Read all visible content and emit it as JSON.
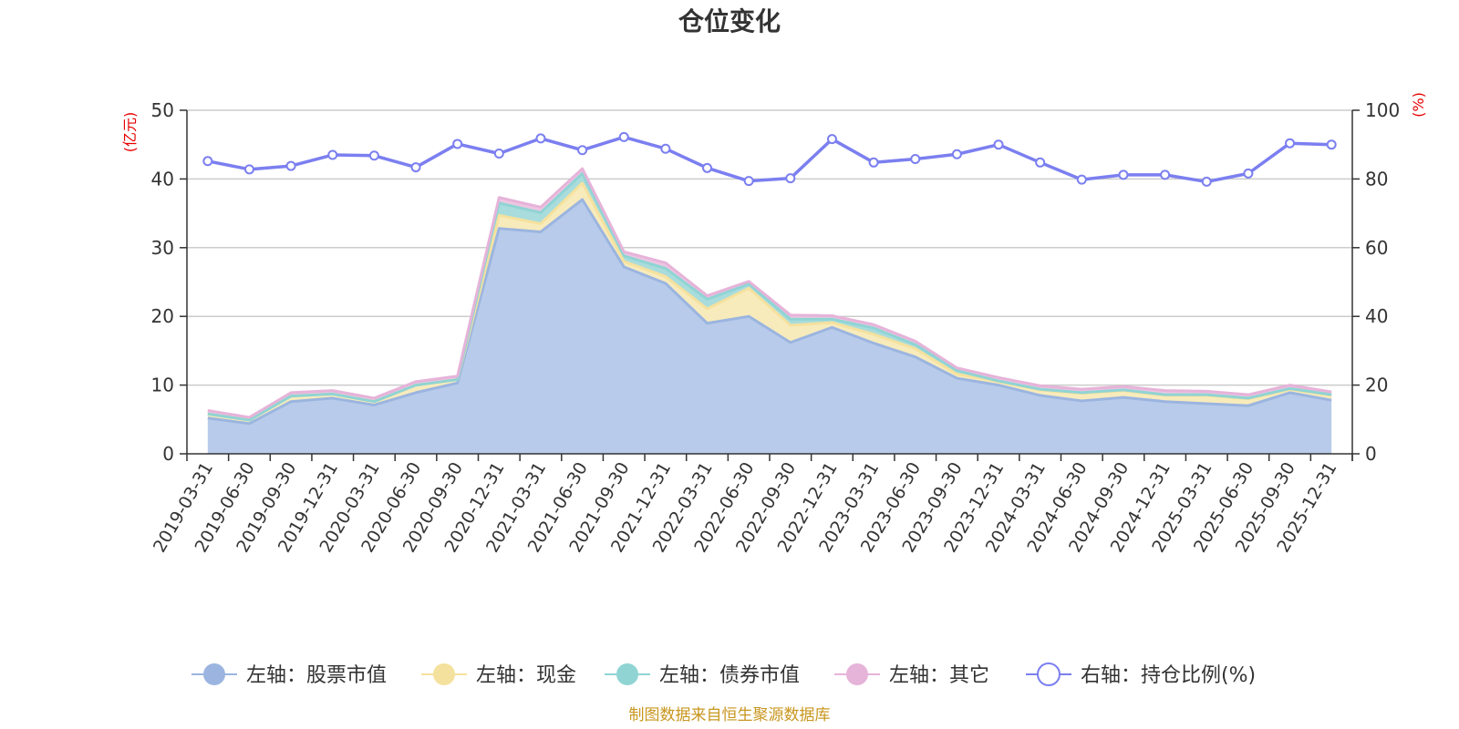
{
  "chart_data": {
    "type": "area",
    "title": "仓位变化",
    "left_unit": "(亿元)",
    "right_unit": "(%)",
    "categories": [
      "2019-03-31",
      "2019-06-30",
      "2019-09-30",
      "2019-12-31",
      "2020-03-31",
      "2020-06-30",
      "2020-09-30",
      "2020-12-31",
      "2021-03-31",
      "2021-06-30",
      "2021-09-30",
      "2021-12-31",
      "2022-03-31",
      "2022-06-30",
      "2022-09-30",
      "2022-12-31",
      "2023-03-31",
      "2023-06-30",
      "2023-09-30",
      "2023-12-31",
      "2024-03-31",
      "2024-06-30",
      "2024-09-30",
      "2024-12-31",
      "2025-03-31",
      "2025-06-30",
      "2025-09-30",
      "2025-12-31"
    ],
    "left_axis": {
      "min": 0,
      "max": 50,
      "ticks": [
        0,
        10,
        20,
        30,
        40,
        50
      ]
    },
    "right_axis": {
      "min": 0,
      "max": 100,
      "ticks": [
        0,
        20,
        40,
        60,
        80,
        100
      ]
    },
    "series": [
      {
        "name": "左轴：股票市值",
        "axis": "left",
        "kind": "stacked-area",
        "color": "#9bb5e0",
        "fill": "#b8cbea",
        "values": [
          5.2,
          4.4,
          7.6,
          8.1,
          7.1,
          8.9,
          10.3,
          32.8,
          32.3,
          37.0,
          27.2,
          24.8,
          19.0,
          20.0,
          16.2,
          18.4,
          16.1,
          14.1,
          11.0,
          10.0,
          8.5,
          7.7,
          8.2,
          7.6,
          7.3,
          7.0,
          8.9,
          7.8
        ]
      },
      {
        "name": "左轴：现金",
        "axis": "left",
        "kind": "stacked-area",
        "color": "#f5e19e",
        "fill": "#f8ebbb",
        "values": [
          0.6,
          0.5,
          0.8,
          0.6,
          0.5,
          1.1,
          0.5,
          1.9,
          1.2,
          2.4,
          0.8,
          1.0,
          2.1,
          4.1,
          2.5,
          0.7,
          1.3,
          1.2,
          0.6,
          0.5,
          0.8,
          1.1,
          1.0,
          0.9,
          1.2,
          1.0,
          0.5,
          0.7
        ]
      },
      {
        "name": "左轴：债券市值",
        "axis": "left",
        "kind": "stacked-area",
        "color": "#90d4d4",
        "fill": "#a9dcdc",
        "values": [
          0.0,
          0.0,
          0.0,
          0.0,
          0.0,
          0.0,
          0.0,
          1.8,
          1.6,
          1.4,
          0.8,
          1.2,
          1.4,
          0.6,
          0.9,
          0.5,
          0.9,
          0.6,
          0.5,
          0.1,
          0.1,
          0.1,
          0.1,
          0.1,
          0.1,
          0.1,
          0.1,
          0.1
        ]
      },
      {
        "name": "左轴：其它",
        "axis": "left",
        "kind": "stacked-area",
        "color": "#e6b3d9",
        "fill": "#eec6e2",
        "values": [
          0.5,
          0.4,
          0.5,
          0.5,
          0.5,
          0.5,
          0.5,
          0.8,
          0.8,
          0.7,
          0.6,
          0.8,
          0.5,
          0.4,
          0.6,
          0.5,
          0.5,
          0.5,
          0.4,
          0.5,
          0.5,
          0.5,
          0.5,
          0.6,
          0.5,
          0.5,
          0.5,
          0.4
        ]
      },
      {
        "name": "右轴：持仓比例(%)",
        "axis": "right",
        "kind": "line",
        "color": "#7b7ff0",
        "fill": "#ffffff",
        "values": [
          85.2,
          82.8,
          83.8,
          87.0,
          86.8,
          83.4,
          90.2,
          87.4,
          91.8,
          88.4,
          92.2,
          88.8,
          83.2,
          79.4,
          80.2,
          91.6,
          84.8,
          85.8,
          87.2,
          90.0,
          84.8,
          79.8,
          81.2,
          81.2,
          79.2,
          81.6,
          90.4,
          90.0
        ]
      }
    ]
  },
  "footer": {
    "source": "制图数据来自恒生聚源数据库"
  }
}
